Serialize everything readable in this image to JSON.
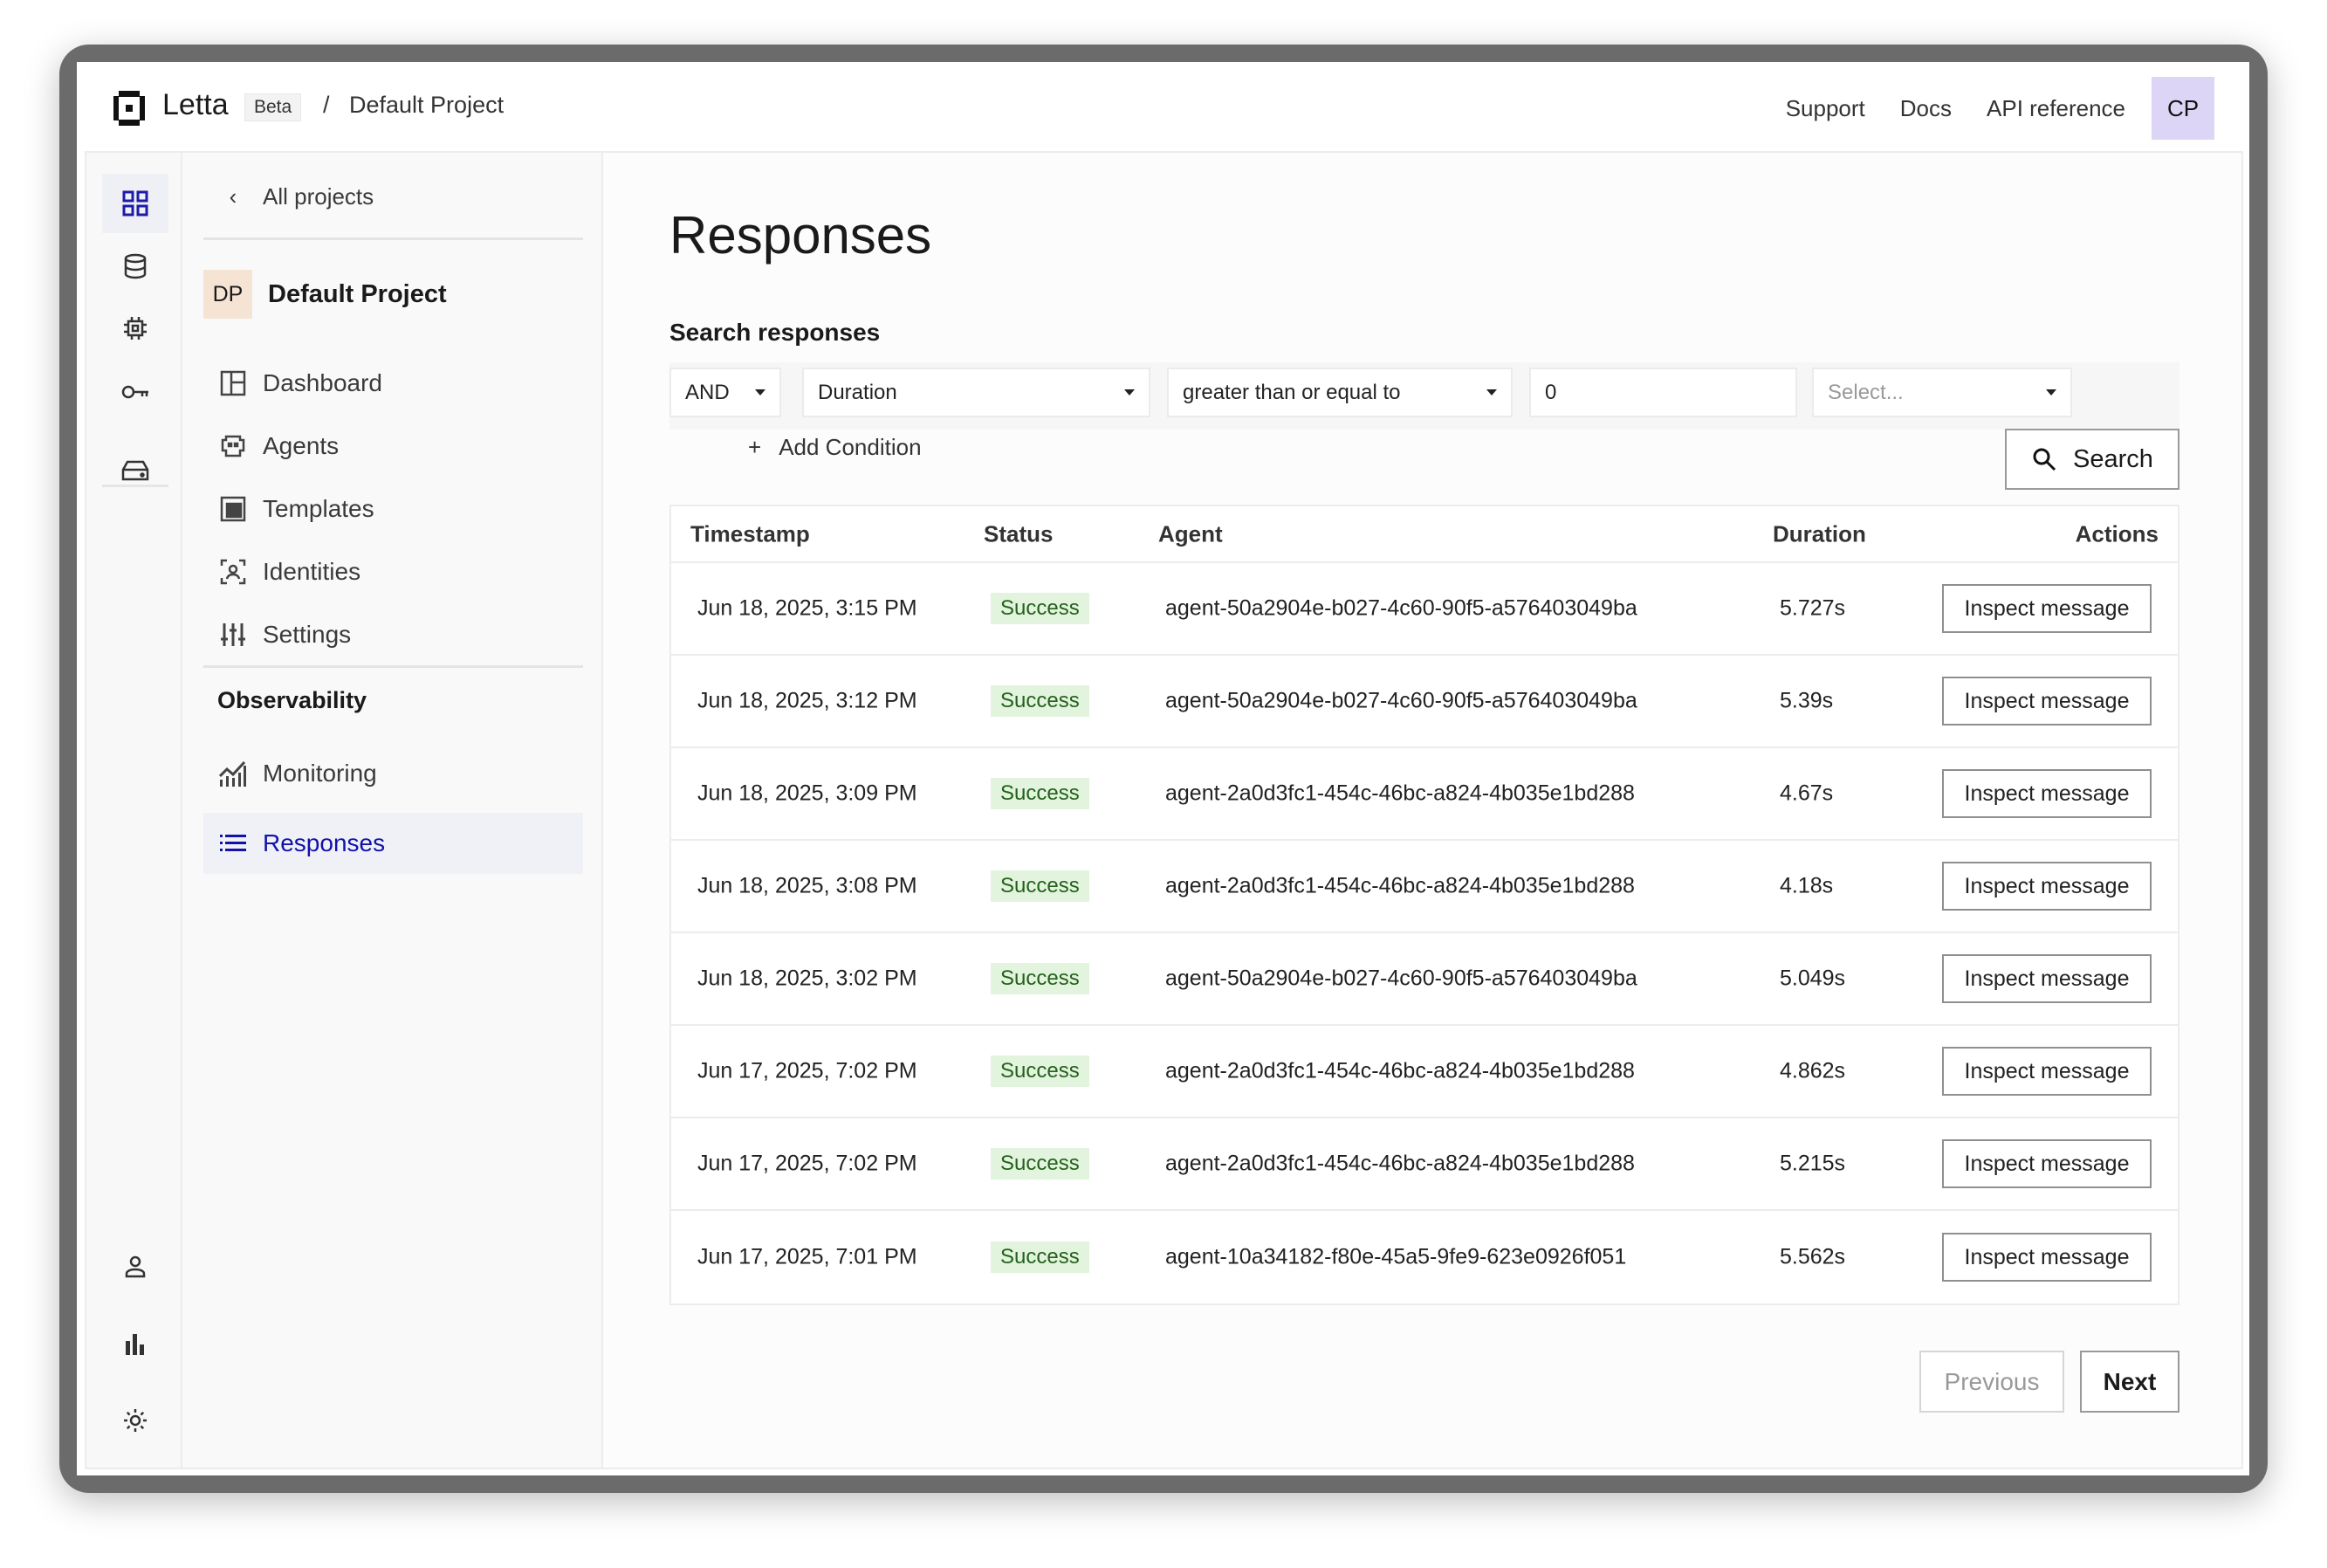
{
  "header": {
    "brand": "Letta",
    "badge": "Beta",
    "separator": "/",
    "breadcrumb": "Default Project",
    "nav": [
      "Support",
      "Docs",
      "API reference"
    ],
    "avatar": "CP"
  },
  "rail": {
    "icons": [
      "grid-icon",
      "database-icon",
      "chip-icon",
      "key-icon",
      "drive-icon",
      "user-icon",
      "bar-chart-icon",
      "gear-icon"
    ]
  },
  "sidebar": {
    "back": "All projects",
    "project_initials": "DP",
    "project_name": "Default Project",
    "items": [
      {
        "label": "Dashboard",
        "icon": "layout-icon"
      },
      {
        "label": "Agents",
        "icon": "robot-icon"
      },
      {
        "label": "Templates",
        "icon": "template-icon"
      },
      {
        "label": "Identities",
        "icon": "identity-icon"
      },
      {
        "label": "Settings",
        "icon": "sliders-icon"
      }
    ],
    "section": "Observability",
    "obs_items": [
      {
        "label": "Monitoring",
        "icon": "chart-icon"
      },
      {
        "label": "Responses",
        "icon": "list-icon",
        "active": true
      }
    ]
  },
  "main": {
    "title": "Responses",
    "search_label": "Search responses",
    "filter": {
      "logic": "AND",
      "field": "Duration",
      "operator": "greater than or equal to",
      "value": "0",
      "unit_placeholder": "Select..."
    },
    "add_condition": "Add Condition",
    "search_button": "Search",
    "columns": [
      "Timestamp",
      "Status",
      "Agent",
      "Duration",
      "Actions"
    ],
    "rows": [
      {
        "timestamp": "Jun 18, 2025, 3:15 PM",
        "status": "Success",
        "agent": "agent-50a2904e-b027-4c60-90f5-a576403049ba",
        "duration": "5.727s",
        "action": "Inspect message"
      },
      {
        "timestamp": "Jun 18, 2025, 3:12 PM",
        "status": "Success",
        "agent": "agent-50a2904e-b027-4c60-90f5-a576403049ba",
        "duration": "5.39s",
        "action": "Inspect message"
      },
      {
        "timestamp": "Jun 18, 2025, 3:09 PM",
        "status": "Success",
        "agent": "agent-2a0d3fc1-454c-46bc-a824-4b035e1bd288",
        "duration": "4.67s",
        "action": "Inspect message"
      },
      {
        "timestamp": "Jun 18, 2025, 3:08 PM",
        "status": "Success",
        "agent": "agent-2a0d3fc1-454c-46bc-a824-4b035e1bd288",
        "duration": "4.18s",
        "action": "Inspect message"
      },
      {
        "timestamp": "Jun 18, 2025, 3:02 PM",
        "status": "Success",
        "agent": "agent-50a2904e-b027-4c60-90f5-a576403049ba",
        "duration": "5.049s",
        "action": "Inspect message"
      },
      {
        "timestamp": "Jun 17, 2025, 7:02 PM",
        "status": "Success",
        "agent": "agent-2a0d3fc1-454c-46bc-a824-4b035e1bd288",
        "duration": "4.862s",
        "action": "Inspect message"
      },
      {
        "timestamp": "Jun 17, 2025, 7:02 PM",
        "status": "Success",
        "agent": "agent-2a0d3fc1-454c-46bc-a824-4b035e1bd288",
        "duration": "5.215s",
        "action": "Inspect message"
      },
      {
        "timestamp": "Jun 17, 2025, 7:01 PM",
        "status": "Success",
        "agent": "agent-10a34182-f80e-45a5-9fe9-623e0926f051",
        "duration": "5.562s",
        "action": "Inspect message"
      }
    ],
    "pagination": {
      "previous": "Previous",
      "next": "Next",
      "previous_disabled": true
    }
  },
  "colors": {
    "accent": "#1212a8",
    "success_bg": "#e2f4de",
    "success_text": "#24611b",
    "avatar_bg": "#dcd5f6",
    "project_avatar_bg": "#f5e4d4"
  }
}
